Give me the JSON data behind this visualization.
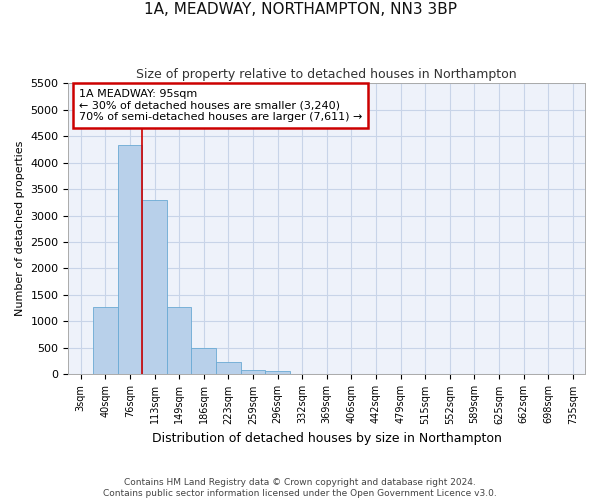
{
  "title": "1A, MEADWAY, NORTHAMPTON, NN3 3BP",
  "subtitle": "Size of property relative to detached houses in Northampton",
  "xlabel": "Distribution of detached houses by size in Northampton",
  "ylabel": "Number of detached properties",
  "bar_color": "#b8d0ea",
  "bar_edge_color": "#6aaad4",
  "background_color": "#eef2fa",
  "grid_color": "#c8d4e8",
  "annotation_box_color": "#cc0000",
  "vline_color": "#cc0000",
  "categories": [
    "3sqm",
    "40sqm",
    "76sqm",
    "113sqm",
    "149sqm",
    "186sqm",
    "223sqm",
    "259sqm",
    "296sqm",
    "332sqm",
    "369sqm",
    "406sqm",
    "442sqm",
    "479sqm",
    "515sqm",
    "552sqm",
    "589sqm",
    "625sqm",
    "662sqm",
    "698sqm",
    "735sqm"
  ],
  "bar_values": [
    0,
    1270,
    4330,
    3300,
    1280,
    490,
    240,
    90,
    60,
    0,
    0,
    0,
    0,
    0,
    0,
    0,
    0,
    0,
    0,
    0,
    0
  ],
  "ylim": [
    0,
    5500
  ],
  "yticks": [
    0,
    500,
    1000,
    1500,
    2000,
    2500,
    3000,
    3500,
    4000,
    4500,
    5000,
    5500
  ],
  "vline_x": 2.5,
  "annotation_text_line1": "1A MEADWAY: 95sqm",
  "annotation_text_line2": "← 30% of detached houses are smaller (3,240)",
  "annotation_text_line3": "70% of semi-detached houses are larger (7,611) →",
  "footer_line1": "Contains HM Land Registry data © Crown copyright and database right 2024.",
  "footer_line2": "Contains public sector information licensed under the Open Government Licence v3.0."
}
